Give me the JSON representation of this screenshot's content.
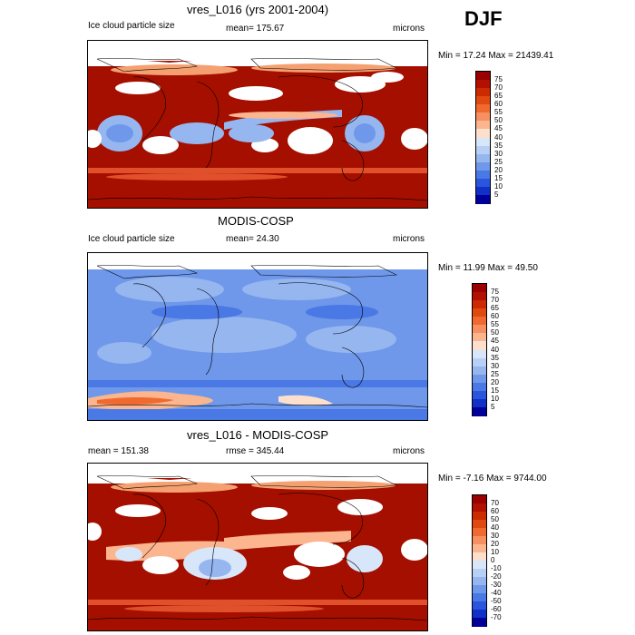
{
  "season": "DJF",
  "panels": [
    {
      "title": "vres_L016 (yrs 2001-2004)",
      "left_label": "Ice cloud particle size",
      "center_label": "mean= 175.67",
      "right_label": "microns",
      "minmax": "Min =  17.24 Max = 21439.41",
      "colorbar_labels": [
        "75",
        "70",
        "65",
        "60",
        "55",
        "50",
        "45",
        "40",
        "35",
        "30",
        "25",
        "20",
        "15",
        "10",
        "5"
      ],
      "palette": [
        "#990000",
        "#b21000",
        "#cc2a00",
        "#e04a10",
        "#f06a30",
        "#f79060",
        "#fbb690",
        "#fde0cc",
        "#d8e6fa",
        "#b8cff6",
        "#96b6f0",
        "#6f98ea",
        "#4a78e4",
        "#2a55dc",
        "#1030c8",
        "#000099"
      ]
    },
    {
      "title": "MODIS-COSP",
      "left_label": "Ice cloud particle size",
      "center_label": "mean=  24.30",
      "right_label": "microns",
      "minmax": "Min =  11.99 Max =  49.50",
      "colorbar_labels": [
        "75",
        "70",
        "65",
        "60",
        "55",
        "50",
        "45",
        "40",
        "35",
        "30",
        "25",
        "20",
        "15",
        "10",
        "5"
      ],
      "palette": [
        "#990000",
        "#b21000",
        "#cc2a00",
        "#e04a10",
        "#f06a30",
        "#f79060",
        "#fbb690",
        "#fde0cc",
        "#d8e6fa",
        "#b8cff6",
        "#96b6f0",
        "#6f98ea",
        "#4a78e4",
        "#2a55dc",
        "#1030c8",
        "#000099"
      ]
    },
    {
      "title": "vres_L016 - MODIS-COSP",
      "left_label": "mean = 151.38",
      "center_label": "rmse = 345.44",
      "right_label": "microns",
      "minmax": "Min =  -7.16 Max = 9744.00",
      "colorbar_labels": [
        "70",
        "60",
        "50",
        "40",
        "30",
        "20",
        "10",
        "0",
        "-10",
        "-20",
        "-30",
        "-40",
        "-50",
        "-60",
        "-70"
      ],
      "palette": [
        "#990000",
        "#b21000",
        "#cc2a00",
        "#e04a10",
        "#f06a30",
        "#f79060",
        "#fbb690",
        "#fde0cc",
        "#d8e6fa",
        "#b8cff6",
        "#96b6f0",
        "#6f98ea",
        "#4a78e4",
        "#2a55dc",
        "#1030c8",
        "#000099"
      ]
    }
  ]
}
